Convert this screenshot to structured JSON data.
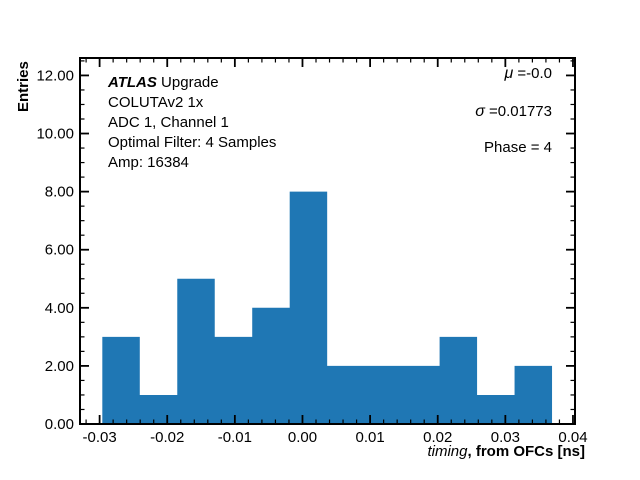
{
  "chart_data": {
    "type": "bar",
    "title": "",
    "bar_color": "#1f77b4",
    "bins": {
      "start": -0.0296,
      "width": 0.005542,
      "count": 12
    },
    "values": [
      3,
      1,
      5,
      3,
      4,
      8,
      2,
      2,
      2,
      3,
      1,
      2
    ],
    "total_entries_shown_as_bars": 36,
    "xlim": [
      -0.0329,
      0.0403
    ],
    "ylim": [
      0,
      12.6
    ],
    "x_ticks": {
      "major": [
        -0.03,
        -0.02,
        -0.01,
        0.0,
        0.01,
        0.02,
        0.03,
        0.04
      ],
      "labels": [
        "-0.03",
        "-0.02",
        "-0.01",
        "0.00",
        "0.01",
        "0.02",
        "0.03",
        "0.04"
      ],
      "minor_step": 0.002
    },
    "y_ticks": {
      "major": [
        0,
        2,
        4,
        6,
        8,
        10,
        12
      ],
      "labels": [
        "0.00",
        "2.00",
        "4.00",
        "6.00",
        "8.00",
        "10.00",
        "12.00"
      ],
      "minor_step": 0.5
    },
    "grid": "off",
    "xlabel": {
      "italic": "timing",
      "rest": ", from OFCs [ns]"
    },
    "ylabel": "Entries",
    "info_lines": {
      "atlas": "ATLAS",
      "atlas_rest": " Upgrade",
      "chip": "COLUTAv2 1x",
      "channel": "ADC 1, Channel 1",
      "filter": "Optimal Filter: 4 Samples",
      "amp": "Amp: 16384"
    },
    "stats": {
      "mu_symbol": "μ",
      "mu_value": " =-0.0",
      "sigma_symbol": "σ",
      "sigma_value": " =0.01773",
      "phase": "Phase = 4"
    }
  }
}
